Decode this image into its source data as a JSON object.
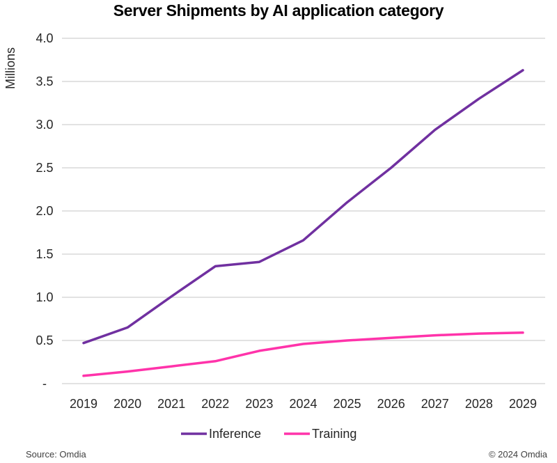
{
  "chart_data": {
    "type": "line",
    "title": "Server Shipments by AI application category",
    "xlabel": "",
    "ylabel": "Millions",
    "x": [
      "2019",
      "2020",
      "2021",
      "2022",
      "2023",
      "2024",
      "2025",
      "2026",
      "2027",
      "2028",
      "2029"
    ],
    "ylim": [
      0,
      4.0
    ],
    "yticks": [
      0,
      0.5,
      1.0,
      1.5,
      2.0,
      2.5,
      3.0,
      3.5,
      4.0
    ],
    "ytick_labels": [
      "-",
      "0.5",
      "1.0",
      "1.5",
      "2.0",
      "2.5",
      "3.0",
      "3.5",
      "4.0"
    ],
    "grid": true,
    "legend": "bottom-center",
    "series": [
      {
        "name": "Inference",
        "color": "#7030A0",
        "values": [
          0.47,
          0.65,
          1.01,
          1.36,
          1.41,
          1.66,
          2.1,
          2.5,
          2.94,
          3.3,
          3.63
        ]
      },
      {
        "name": "Training",
        "color": "#FF33AA",
        "values": [
          0.09,
          0.14,
          0.2,
          0.26,
          0.38,
          0.46,
          0.5,
          0.53,
          0.56,
          0.58,
          0.59
        ]
      }
    ]
  },
  "footer": {
    "source": "Source: Omdia",
    "copyright": "© 2024 Omdia"
  }
}
